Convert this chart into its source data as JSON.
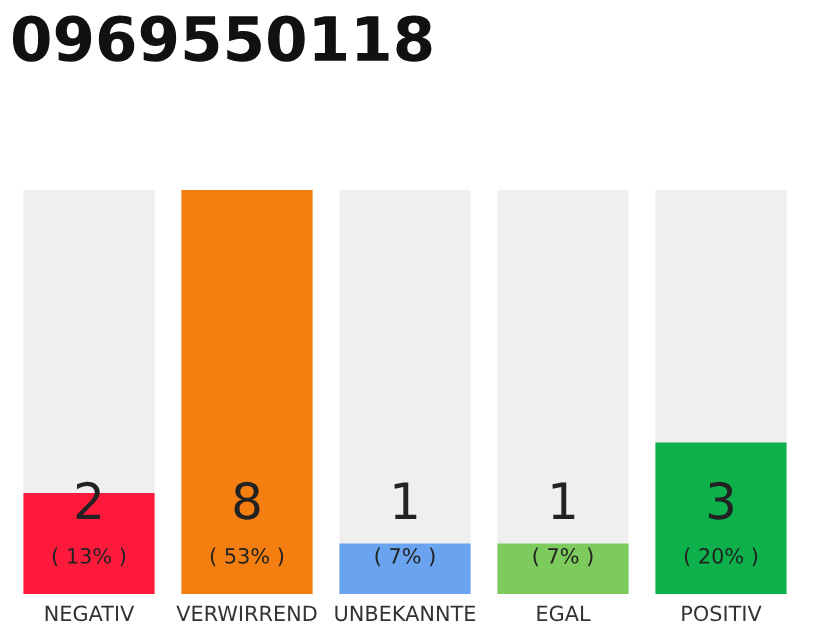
{
  "chart_data": {
    "type": "bar",
    "title": "0969550118",
    "categories": [
      "NEGATIV",
      "VERWIRREND",
      "UNBEKANNTE",
      "EGAL",
      "POSITIV"
    ],
    "values": [
      2,
      8,
      1,
      1,
      3
    ],
    "colors": [
      "#ff1a3c",
      "#f47f10",
      "#6aa3ef",
      "#7dcb5c",
      "#0db14b"
    ],
    "value_labels": [
      "2\n( 13% )",
      "8\n( 53% )",
      "1\n( 7% )",
      "1\n( 7% )",
      "3\n( 20% )"
    ],
    "grid": false,
    "legend": false
  }
}
